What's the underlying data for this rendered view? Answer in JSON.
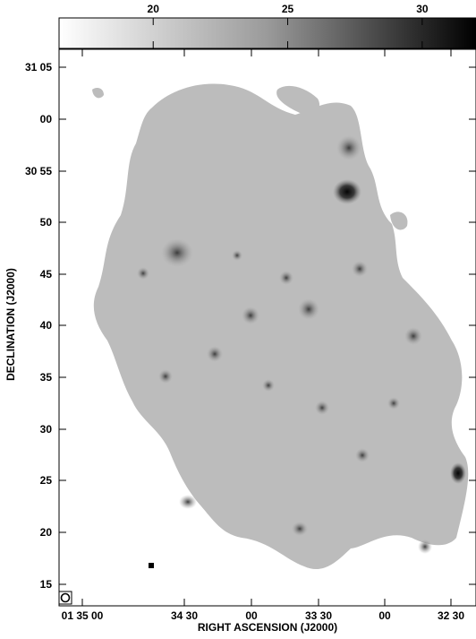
{
  "colorbar": {
    "tick_labels": [
      "20",
      "25",
      "30"
    ],
    "ticks": [
      20,
      25,
      30
    ],
    "min": 16.5,
    "max": 32.0,
    "colors": {
      "low": "#ffffff",
      "high": "#000000"
    }
  },
  "axes": {
    "x_label": "RIGHT ASCENSION (J2000)",
    "y_label": "DECLINATION (J2000)",
    "x_tick_labels": [
      "01 35 00",
      "34 30",
      "00",
      "33 30",
      "00",
      "32 30"
    ],
    "y_tick_labels": [
      "31 05",
      "00",
      "30 55",
      "50",
      "45",
      "40",
      "35",
      "30",
      "25",
      "20",
      "15"
    ]
  },
  "image": {
    "description_colors": {
      "map_gray": "#bdbdbd",
      "background": "#ffffff"
    },
    "beam_marker": "beam-circle"
  }
}
